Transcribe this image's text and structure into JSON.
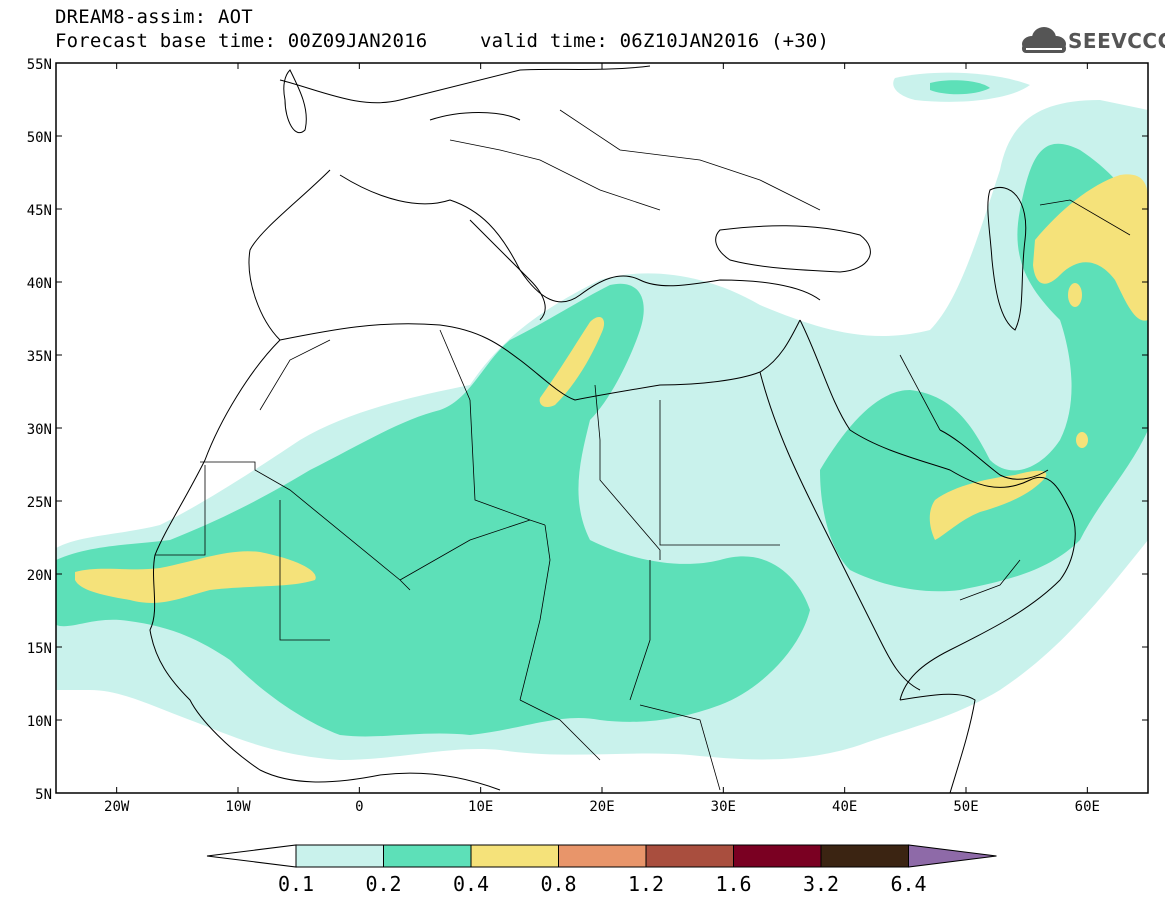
{
  "header": {
    "title": "DREAM8-assim: AOT",
    "base_time": "Forecast base time: 00Z09JAN2016",
    "valid_time": "valid time: 06Z10JAN2016 (+30)"
  },
  "logo": {
    "text": "SEEVCCC",
    "icon": "cloud-icon"
  },
  "map": {
    "lat_labels": [
      "55N",
      "50N",
      "45N",
      "40N",
      "35N",
      "30N",
      "25N",
      "20N",
      "15N",
      "10N",
      "5N"
    ],
    "lon_labels": [
      "20W",
      "10W",
      "0",
      "10E",
      "20E",
      "30E",
      "40E",
      "50E",
      "60E"
    ],
    "lat_range": [
      5,
      55
    ],
    "lon_range": [
      -25,
      65
    ]
  },
  "colorbar": {
    "labels": [
      "0.1",
      "0.2",
      "0.4",
      "0.8",
      "1.2",
      "1.6",
      "3.2",
      "6.4"
    ],
    "colors": [
      "#ffffff",
      "#c9f2ec",
      "#5de0b8",
      "#f5e27a",
      "#e8956a",
      "#a94e3e",
      "#7a0022",
      "#3b2412",
      "#8e6aa8"
    ]
  },
  "field_colors": {
    "low": "#c9f2ec",
    "mid": "#5de0b8",
    "high": "#f5e27a"
  }
}
